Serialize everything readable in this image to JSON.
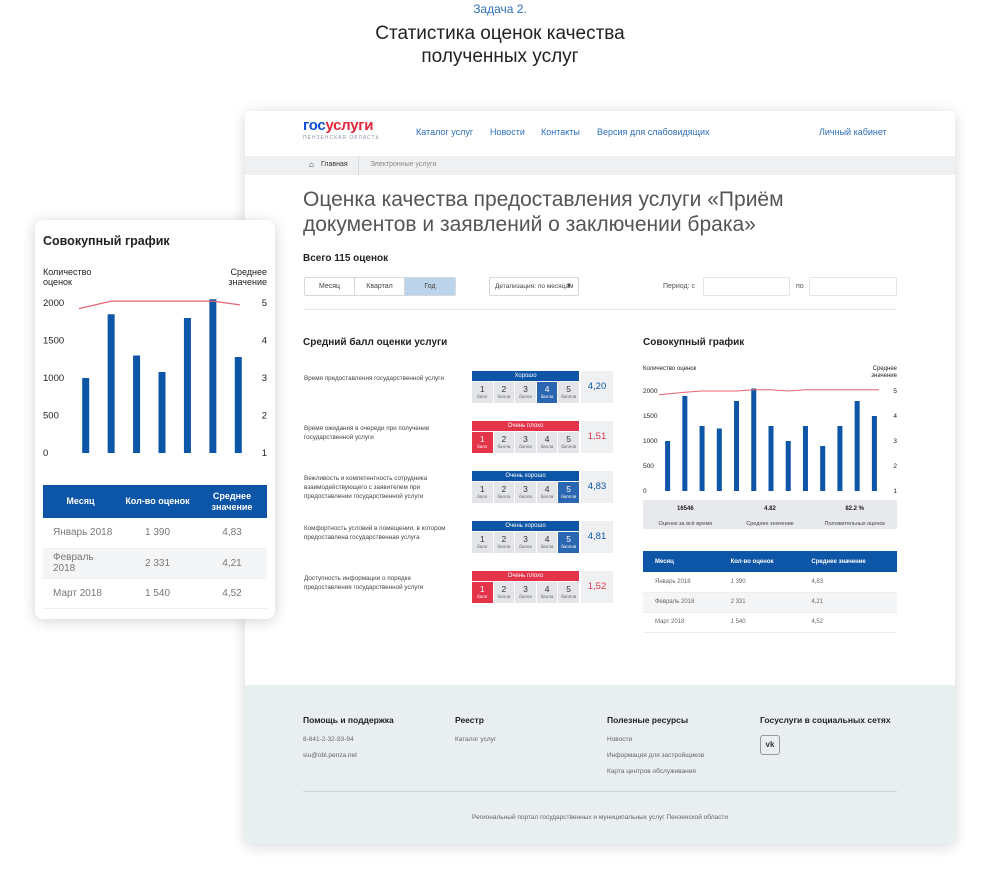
{
  "page": {
    "task": "Задача 2.",
    "heading_line1": "Статистика оценок качества",
    "heading_line2": "полученных услуг"
  },
  "header": {
    "logo_a": "гос",
    "logo_b": "услуги",
    "logo_sub": "ПЕНЗЕНСКАЯ ОБЛАСТЬ",
    "nav": [
      "Каталог услуг",
      "Новости",
      "Контакты",
      "Версия для слабовидящих"
    ],
    "cabinet": "Личный кабинет"
  },
  "breadcrumbs": {
    "home": "Главная",
    "current": "Электронные услуги"
  },
  "main": {
    "title": "Оценка качества предоставления услуги «Приём документов и заявлений о заключении брака»",
    "total": "Всего 115 оценок",
    "period_tabs": [
      "Месяц",
      "Квартал",
      "Год"
    ],
    "active_tab": "Год",
    "detail_select": "Детализация: по месяцам",
    "period_label": "Период:",
    "from_label": "с",
    "to_label": "по",
    "avg_title": "Средний балл оценки услуги",
    "chart_title": "Совокупный график"
  },
  "ratings": [
    {
      "criterion": "Время предоставления государственной услуги",
      "verdict": "Хорошо",
      "tone": "blue",
      "selected": 4,
      "score": "4,20"
    },
    {
      "criterion": "Время ожидания в очереди при получении государственной услуги",
      "verdict": "Очень плохо",
      "tone": "red",
      "selected": 1,
      "score": "1,51"
    },
    {
      "criterion": "Вежливость и компетентность сотрудника взаимодействующего с заявителем при предоставлении государственной услуги",
      "verdict": "Очень хорошо",
      "tone": "blue",
      "selected": 5,
      "score": "4,83"
    },
    {
      "criterion": "Комфортность условий в помещении, в котором предоставлена государственная услуга",
      "verdict": "Очень хорошо",
      "tone": "blue",
      "selected": 5,
      "score": "4,81"
    },
    {
      "criterion": "Доступность информации о порядке предоставления государственной услуги",
      "verdict": "Очень плохо",
      "tone": "red",
      "selected": 1,
      "score": "1,52"
    }
  ],
  "rating_cells": [
    {
      "n": "1",
      "w": "балл"
    },
    {
      "n": "2",
      "w": "балла"
    },
    {
      "n": "3",
      "w": "балла"
    },
    {
      "n": "4",
      "w": "балла"
    },
    {
      "n": "5",
      "w": "баллов"
    }
  ],
  "chart_data": [
    {
      "type": "bar",
      "title": "Совокупный график",
      "ylabel_left": "Количество оценок",
      "ylabel_right": "Среднее значение",
      "yticks_left": [
        "2000",
        "1500",
        "1000",
        "500",
        "0"
      ],
      "yticks_right": [
        "5",
        "4",
        "3",
        "2",
        "1"
      ],
      "ylim": [
        0,
        2000
      ],
      "y2lim": [
        1,
        5
      ],
      "values": [
        1000,
        1850,
        1300,
        1080,
        1800,
        2050,
        1280
      ],
      "line": [
        4.85,
        5.05,
        5.05,
        5.05,
        5.05,
        5.05,
        4.95
      ]
    },
    {
      "type": "bar",
      "title": "Совокупный график",
      "ylabel_left": "Количество оценок",
      "ylabel_right": "Среднее значение",
      "yticks_left": [
        "2000",
        "1500",
        "1000",
        "500",
        "0"
      ],
      "yticks_right": [
        "5",
        "4",
        "3",
        "2",
        "1"
      ],
      "ylim": [
        0,
        2000
      ],
      "y2lim": [
        1,
        5
      ],
      "values": [
        1000,
        1900,
        1300,
        1250,
        1800,
        2050,
        1300,
        1000,
        1300,
        900,
        1300,
        1800,
        1500
      ],
      "line": [
        4.85,
        4.95,
        5.0,
        5.0,
        5.0,
        5.05,
        5.05,
        5.0,
        5.05,
        5.05,
        5.05,
        5.05,
        5.05
      ]
    }
  ],
  "stats": [
    {
      "value": "16546",
      "label": "Оценок за всё время"
    },
    {
      "value": "4.82",
      "label": "Среднее значение"
    },
    {
      "value": "82.2 %",
      "label": "Положительных оценок"
    }
  ],
  "table": {
    "headers": [
      "Месяц",
      "Кол-во оценок",
      "Среднее значение"
    ],
    "rows": [
      [
        "Январь 2018",
        "1 390",
        "4,83"
      ],
      [
        "Февраль 2018",
        "2 331",
        "4,21"
      ],
      [
        "Март 2018",
        "1 540",
        "4,52"
      ]
    ]
  },
  "mobile": {
    "title": "Совокупный график",
    "ylabel_left": "Количество оценок",
    "ylabel_right": "Среднее значение",
    "headers": [
      "Месяц",
      "Кол-во оценок",
      "Среднее значение"
    ]
  },
  "footer": {
    "cols": [
      {
        "title": "Помощь и поддержка",
        "links": [
          "8-841-2-32-93-94",
          "siu@obl.penza.net"
        ]
      },
      {
        "title": "Реестр",
        "links": [
          "Каталог услуг"
        ]
      },
      {
        "title": "Полезные ресурсы",
        "links": [
          "Новости",
          "Информация для застройщиков",
          "Карта центров обслуживания"
        ]
      },
      {
        "title": "Госуслуги в социальных сетях",
        "links": []
      }
    ],
    "vk": "vk",
    "copyright": "Региональный портал государственных и муниципальных услуг Пензенской области"
  },
  "colors": {
    "bar": "#0d55a6",
    "line": "#e56470",
    "blue": "#0d55a6",
    "red": "#e3344a"
  }
}
